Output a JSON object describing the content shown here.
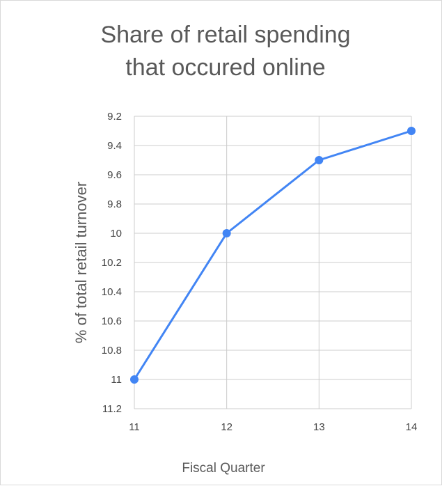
{
  "chart_data": {
    "type": "line",
    "title_lines": [
      "Share of retail spending",
      "that occured online"
    ],
    "xlabel": "Fiscal Quarter",
    "ylabel": "% of total retail turnover",
    "x": [
      11,
      12,
      13,
      14
    ],
    "series": [
      {
        "values": [
          11,
          10,
          9.5,
          9.3
        ],
        "color": "#4285f4"
      }
    ],
    "x_ticks": [
      "11",
      "12",
      "13",
      "14"
    ],
    "y_ticks": [
      "9.2",
      "9.4",
      "9.6",
      "9.8",
      "10",
      "10.2",
      "10.4",
      "10.6",
      "10.8",
      "11",
      "11.2"
    ],
    "y_tick_values": [
      9.2,
      9.4,
      9.6,
      9.8,
      10,
      10.2,
      10.4,
      10.6,
      10.8,
      11,
      11.2
    ],
    "xlim": [
      11,
      14
    ],
    "ylim": [
      9.2,
      11.2
    ],
    "y_reversed": true,
    "grid": true,
    "gridline_color": "#cccccc"
  }
}
